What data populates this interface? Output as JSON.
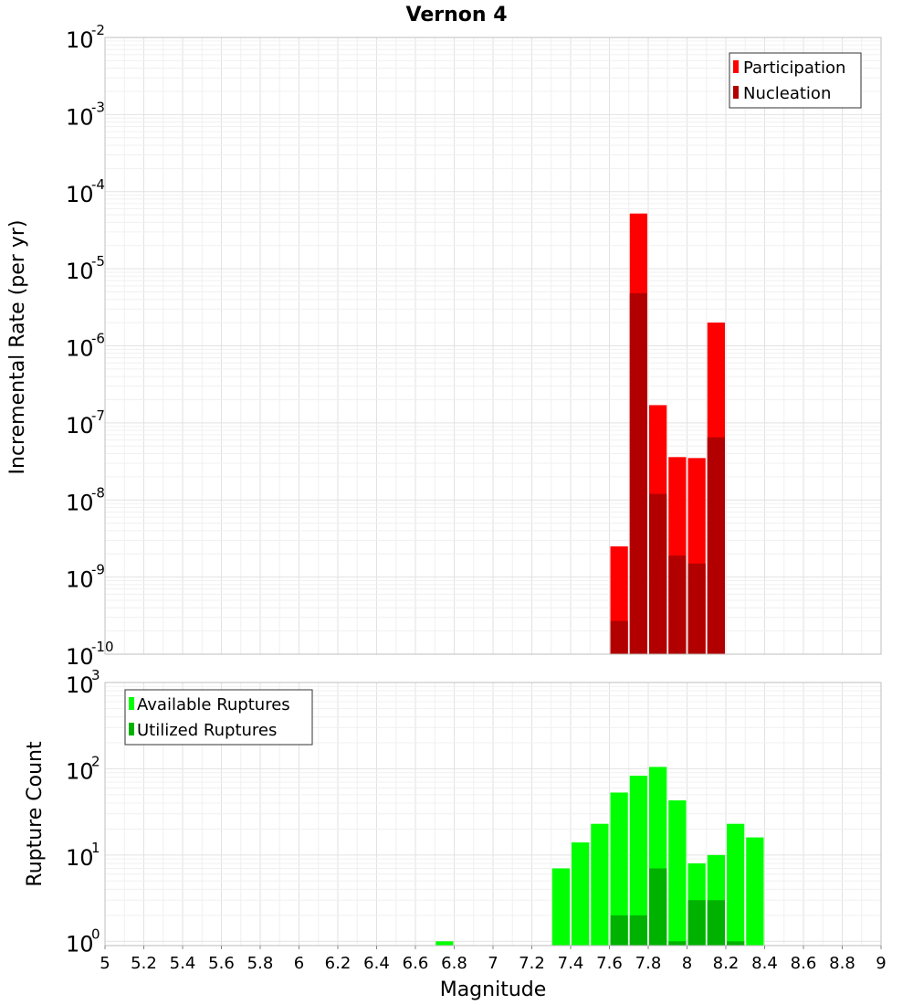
{
  "chart_data": [
    {
      "type": "bar",
      "id": "top",
      "title": "Vernon 4",
      "xlabel": "",
      "ylabel": "Incremental Rate (per yr)",
      "yscale": "log",
      "ylim_exp": [
        -10,
        -2
      ],
      "ytick_base": "10",
      "ytick_exps": [
        "-10",
        "-9",
        "-8",
        "-7",
        "-6",
        "-5",
        "-4",
        "-3",
        "-2"
      ],
      "xlim": [
        5,
        9
      ],
      "bin_width": 0.1,
      "legend": {
        "position": "top-right",
        "entries": [
          "Participation",
          "Nucleation"
        ]
      },
      "series": [
        {
          "name": "Participation",
          "color": "#ff0000",
          "x": [
            7.65,
            7.75,
            7.85,
            7.95,
            8.05,
            8.15
          ],
          "values": [
            2.5e-09,
            5.2e-05,
            1.7e-07,
            3.6e-08,
            3.5e-08,
            2e-06
          ]
        },
        {
          "name": "Nucleation",
          "color": "#b20000",
          "x": [
            7.65,
            7.75,
            7.85,
            7.95,
            8.05,
            8.15
          ],
          "values": [
            2.7e-10,
            4.8e-06,
            1.2e-08,
            1.9e-09,
            1.5e-09,
            6.5e-08
          ]
        }
      ]
    },
    {
      "type": "bar",
      "id": "bottom",
      "title": "",
      "xlabel": "Magnitude",
      "ylabel": "Rupture Count",
      "yscale": "log",
      "ylim_exp": [
        -0.05,
        3
      ],
      "ytick_base": "10",
      "ytick_exps": [
        "0",
        "1",
        "2",
        "3"
      ],
      "xlim": [
        5,
        9
      ],
      "xticks": [
        "5",
        "5.2",
        "5.4",
        "5.6",
        "5.8",
        "6",
        "6.2",
        "6.4",
        "6.6",
        "6.8",
        "7",
        "7.2",
        "7.4",
        "7.6",
        "7.8",
        "8",
        "8.2",
        "8.4",
        "8.6",
        "8.8",
        "9"
      ],
      "bin_width": 0.1,
      "legend": {
        "position": "top-left",
        "entries": [
          "Available Ruptures",
          "Utilized Ruptures"
        ]
      },
      "series": [
        {
          "name": "Available Ruptures",
          "color": "#00ff00",
          "x": [
            6.75,
            7.35,
            7.45,
            7.55,
            7.65,
            7.75,
            7.85,
            7.95,
            8.05,
            8.15,
            8.25,
            8.35
          ],
          "values": [
            1,
            7,
            14,
            23,
            53,
            83,
            105,
            43,
            8,
            10,
            23,
            16
          ]
        },
        {
          "name": "Utilized Ruptures",
          "color": "#00b200",
          "x": [
            7.65,
            7.75,
            7.85,
            7.95,
            8.05,
            8.15,
            8.25
          ],
          "values": [
            2,
            2,
            7,
            1,
            3,
            3,
            1
          ]
        }
      ]
    }
  ]
}
